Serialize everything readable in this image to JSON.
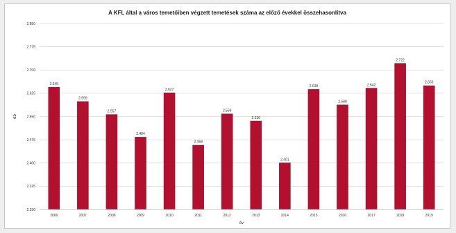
{
  "chart_data": {
    "type": "bar",
    "title": "A KFL által a város temetőiben végzett temetések száma az előző évekkel összehasonlítva",
    "xlabel": "év",
    "ylabel": "db",
    "categories": [
      "2006",
      "2007",
      "2008",
      "2009",
      "2010",
      "2011",
      "2012",
      "2013",
      "2014",
      "2015",
      "2016",
      "2017",
      "2018",
      "2019"
    ],
    "series": [
      {
        "values": [
          2645,
          2599,
          2557,
          2484,
          2627,
          2458,
          2559,
          2536,
          2401,
          2638,
          2588,
          2642,
          2722,
          2650
        ]
      }
    ],
    "value_labels": [
      "2.645",
      "2.599",
      "2.557",
      "2.484",
      "2.627",
      "2.458",
      "2.559",
      "2.536",
      "2.401",
      "2.638",
      "2.588",
      "2.642",
      "2.722",
      "2.650"
    ],
    "ylim": [
      2250,
      2850
    ],
    "yticks": [
      2250,
      2325,
      2400,
      2475,
      2550,
      2625,
      2700,
      2775,
      2850
    ],
    "ytick_labels": [
      "2.250",
      "2.325",
      "2.400",
      "2.475",
      "2.550",
      "2.625",
      "2.700",
      "2.775",
      "2.850"
    ],
    "grid": true,
    "bar_color": "#b2102f"
  }
}
